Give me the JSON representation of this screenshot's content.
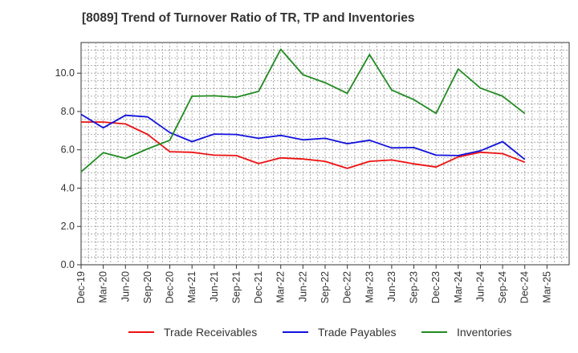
{
  "chart_data": {
    "type": "line",
    "title": "[8089]  Trend of Turnover Ratio of TR, TP and Inventories",
    "x": [
      "Dec-19",
      "Mar-20",
      "Jun-20",
      "Sep-20",
      "Dec-20",
      "Mar-21",
      "Jun-21",
      "Sep-21",
      "Dec-21",
      "Mar-22",
      "Jun-22",
      "Sep-22",
      "Dec-22",
      "Mar-23",
      "Jun-23",
      "Sep-23",
      "Dec-23",
      "Mar-24",
      "Jun-24",
      "Sep-24",
      "Dec-24"
    ],
    "x_tick_labels": [
      "Dec-19",
      "Mar-20",
      "Jun-20",
      "Sep-20",
      "Dec-20",
      "Mar-21",
      "Jun-21",
      "Sep-21",
      "Dec-21",
      "Mar-22",
      "Jun-22",
      "Sep-22",
      "Dec-22",
      "Mar-23",
      "Jun-23",
      "Sep-23",
      "Dec-23",
      "Mar-24",
      "Jun-24",
      "Sep-24",
      "Dec-24",
      "Mar-25"
    ],
    "y_tick_labels": [
      "0.0",
      "2.0",
      "4.0",
      "6.0",
      "8.0",
      "10.0"
    ],
    "ylim": [
      0,
      11.6
    ],
    "grid": true,
    "legend_position": "bottom",
    "series": [
      {
        "name": "Trade Receivables",
        "color": "#ee1111",
        "values": [
          7.45,
          7.45,
          7.35,
          6.8,
          5.9,
          5.87,
          5.72,
          5.7,
          5.28,
          5.58,
          5.52,
          5.4,
          5.03,
          5.4,
          5.47,
          5.27,
          5.1,
          5.63,
          5.87,
          5.8,
          5.35
        ]
      },
      {
        "name": "Trade Payables",
        "color": "#1111dd",
        "values": [
          7.85,
          7.15,
          7.8,
          7.72,
          6.9,
          6.43,
          6.82,
          6.8,
          6.6,
          6.75,
          6.52,
          6.6,
          6.32,
          6.5,
          6.1,
          6.12,
          5.72,
          5.7,
          5.95,
          6.43,
          5.5
        ]
      },
      {
        "name": "Inventories",
        "color": "#228b22",
        "values": [
          4.85,
          5.85,
          5.55,
          6.05,
          6.5,
          8.8,
          8.82,
          8.75,
          9.05,
          11.25,
          9.92,
          9.5,
          8.95,
          10.97,
          9.12,
          8.62,
          7.9,
          10.22,
          9.22,
          8.8,
          7.9
        ]
      }
    ]
  }
}
